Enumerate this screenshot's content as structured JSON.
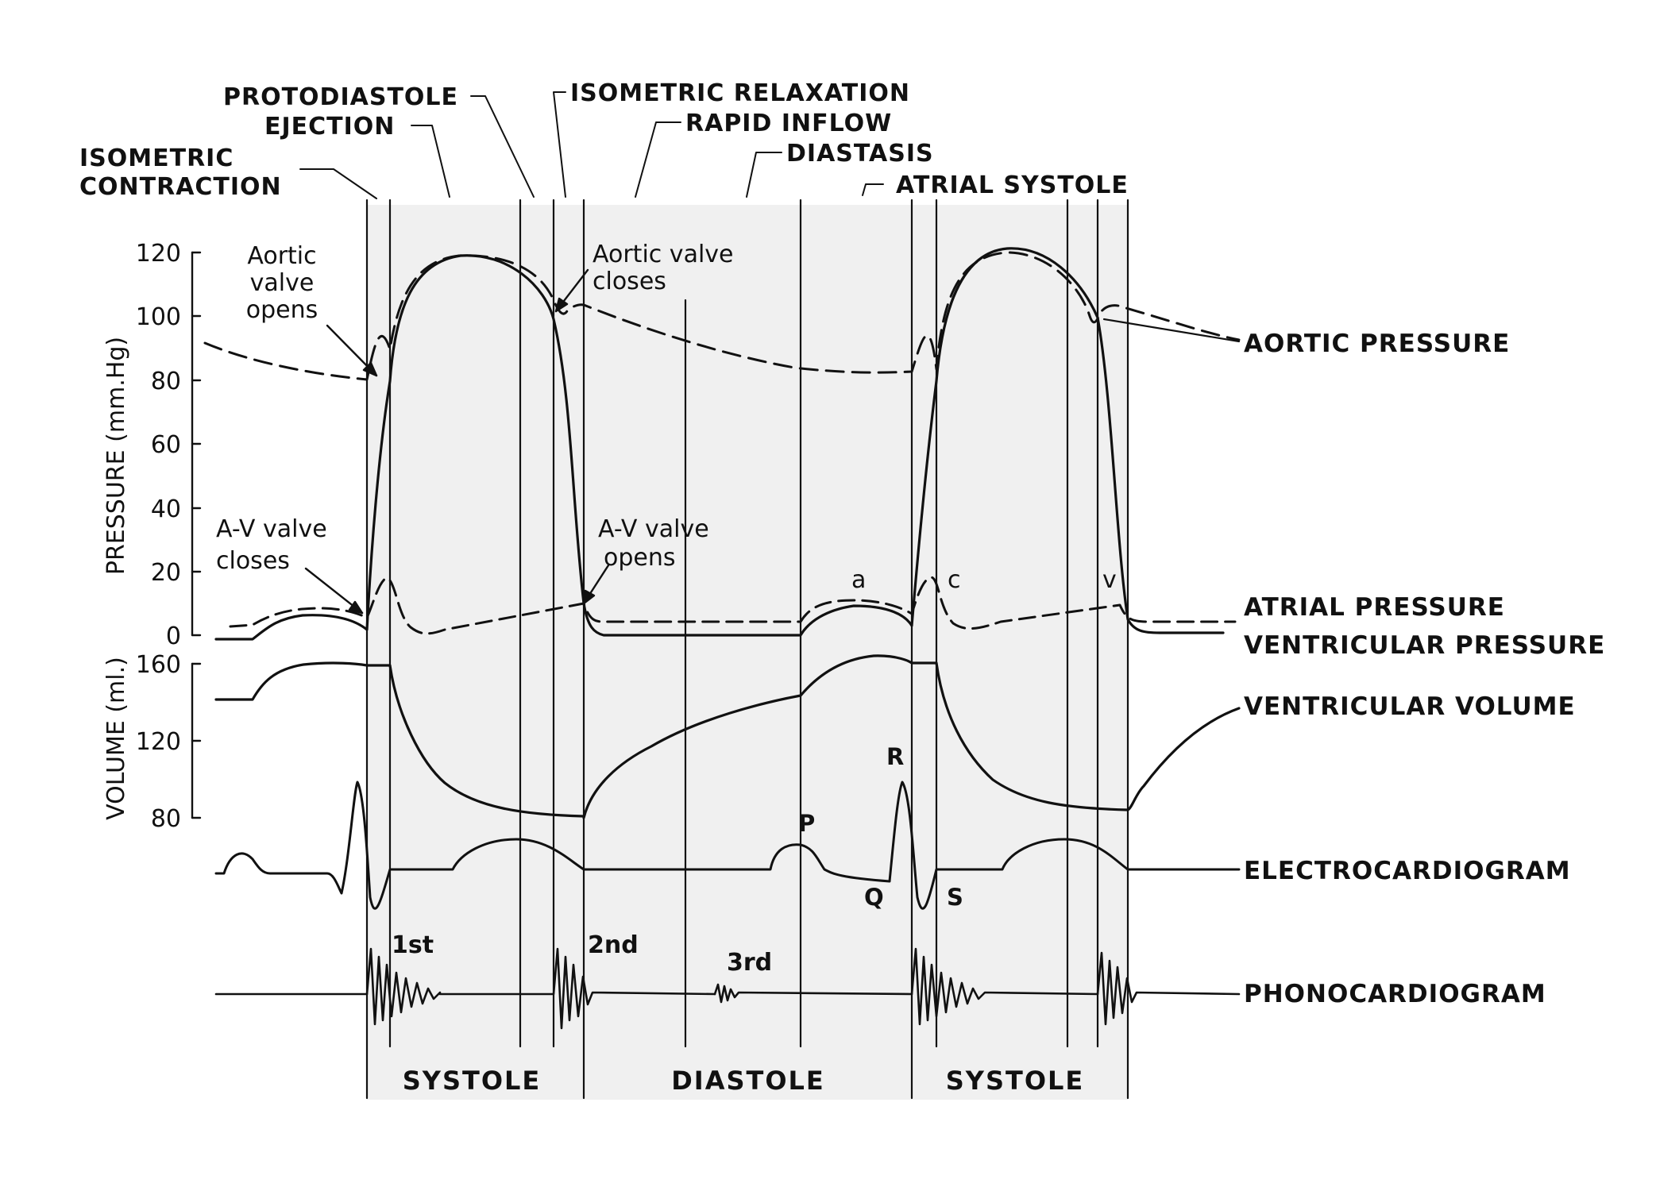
{
  "phases": {
    "isometric_contraction_1": "ISOMETRIC",
    "isometric_contraction_2": "CONTRACTION",
    "ejection": "EJECTION",
    "protodiastole": "PROTODIASTOLE",
    "isometric_relaxation": "ISOMETRIC RELAXATION",
    "rapid_inflow": "RAPID INFLOW",
    "diastasis": "DIASTASIS",
    "atrial_systole": "ATRIAL SYSTOLE"
  },
  "pressure_axis": {
    "title": "PRESSURE (mm.Hg)",
    "ticks": [
      "120",
      "100",
      "80",
      "60",
      "40",
      "20",
      "0"
    ]
  },
  "volume_axis": {
    "title": "VOLUME (ml.)",
    "ticks": [
      "160",
      "120",
      "80"
    ]
  },
  "annotations": {
    "aortic_opens_1": "Aortic",
    "aortic_opens_2": "valve",
    "aortic_opens_3": "opens",
    "aortic_closes_1": "Aortic valve",
    "aortic_closes_2": "closes",
    "av_closes_1": "A-V valve",
    "av_closes_2": "closes",
    "av_opens_1": "A-V valve",
    "av_opens_2": "opens",
    "wave_a": "a",
    "wave_c": "c",
    "wave_v": "v"
  },
  "trace_labels": {
    "aortic_pressure": "AORTIC PRESSURE",
    "atrial_pressure": "ATRIAL PRESSURE",
    "ventricular_pressure": "VENTRICULAR PRESSURE",
    "ventricular_volume": "VENTRICULAR VOLUME",
    "electrocardiogram": "ELECTROCARDIOGRAM",
    "phonocardiogram": "PHONOCARDIOGRAM"
  },
  "ecg_waves": {
    "P": "P",
    "Q": "Q",
    "R": "R",
    "S": "S"
  },
  "heart_sounds": {
    "first": "1st",
    "second": "2nd",
    "third": "3rd"
  },
  "cycle_phases": {
    "systole_1": "SYSTOLE",
    "diastole": "DIASTOLE",
    "systole_2": "SYSTOLE"
  },
  "colors": {
    "ink": "#111111",
    "shade": "#f0f0f0",
    "background": "#ffffff"
  }
}
